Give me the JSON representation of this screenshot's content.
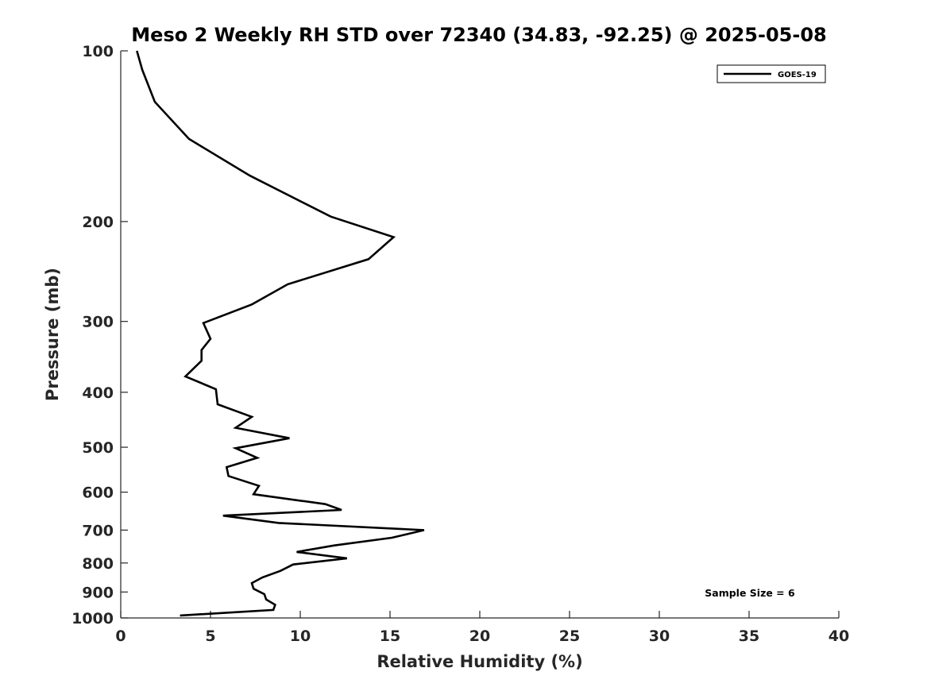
{
  "chart_data": {
    "type": "line",
    "title": "Meso 2 Weekly RH STD over 72340 (34.83, -92.25) @ 2025-05-08",
    "xlabel": "Relative Humidity (%)",
    "ylabel": "Pressure (mb)",
    "xlim": [
      0,
      40
    ],
    "ylim": [
      100,
      1000
    ],
    "y_scale": "log",
    "y_reversed": true,
    "grid": false,
    "x_ticks": [
      0,
      5,
      10,
      15,
      20,
      25,
      30,
      35,
      40
    ],
    "x_tick_labels": [
      "0",
      "5",
      "10",
      "15",
      "20",
      "25",
      "30",
      "35",
      "40"
    ],
    "y_ticks": [
      100,
      200,
      300,
      400,
      500,
      600,
      700,
      800,
      900,
      1000
    ],
    "y_tick_labels": [
      "100",
      "200",
      "300",
      "400",
      "500",
      "600",
      "700",
      "800",
      "900",
      "1000"
    ],
    "legend_position": "top-right",
    "annotation": "Sample Size = 6",
    "series": [
      {
        "name": "GOES-19",
        "color": "#000000",
        "x": [
          0.9,
          1.2,
          1.9,
          3.8,
          7.2,
          11.7,
          15.2,
          13.8,
          9.3,
          7.3,
          4.6,
          5.0,
          4.5,
          4.5,
          3.6,
          5.3,
          5.4,
          7.3,
          6.4,
          9.4,
          6.4,
          7.6,
          5.9,
          6.0,
          7.7,
          7.4,
          11.4,
          12.3,
          5.7,
          8.8,
          16.9,
          15.1,
          11.9,
          9.8,
          12.6,
          9.6,
          8.9,
          7.9,
          7.3,
          7.4,
          8.0,
          8.1,
          8.6,
          8.5,
          3.3
        ],
        "y": [
          100,
          108,
          123,
          143,
          166,
          196,
          213,
          233,
          258,
          280,
          302,
          322,
          337,
          352,
          375,
          395,
          420,
          442,
          462,
          482,
          502,
          522,
          542,
          562,
          585,
          605,
          630,
          645,
          660,
          680,
          700,
          722,
          745,
          765,
          785,
          805,
          826,
          848,
          868,
          888,
          908,
          928,
          948,
          968,
          990
        ]
      }
    ]
  }
}
